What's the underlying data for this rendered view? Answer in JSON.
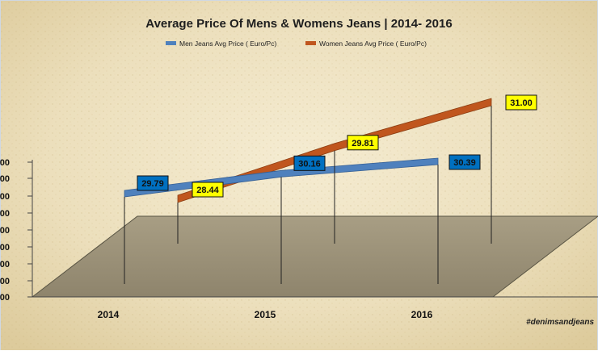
{
  "chart_data": {
    "type": "line",
    "title": "Average Price Of Mens & Womens Jeans | 2014- 2016",
    "categories": [
      "2014",
      "2015",
      "2016"
    ],
    "series": [
      {
        "name": "Men Jeans Avg Price ( Euro/Pc)",
        "values": [
          29.79,
          30.16,
          30.39
        ],
        "color": "#4f81bd",
        "label_bg": "#0070c0"
      },
      {
        "name": "Women Jeans Avg Price ( Euro/Pc)",
        "values": [
          28.44,
          29.81,
          31.0
        ],
        "color": "#c0561e",
        "label_bg": "#ffff00"
      }
    ],
    "value_labels": [
      [
        "29.79",
        "30.16",
        "30.39"
      ],
      [
        "28.44",
        "29.81",
        "31.00"
      ]
    ],
    "y_tick_labels": [
      "00",
      "00",
      "00",
      "00",
      "00",
      "00",
      "00",
      "00",
      "00"
    ],
    "legend_position": "top",
    "grid": false,
    "chart_style": "3d-line",
    "background": "parchment"
  },
  "watermark": "#denimsandjeans"
}
